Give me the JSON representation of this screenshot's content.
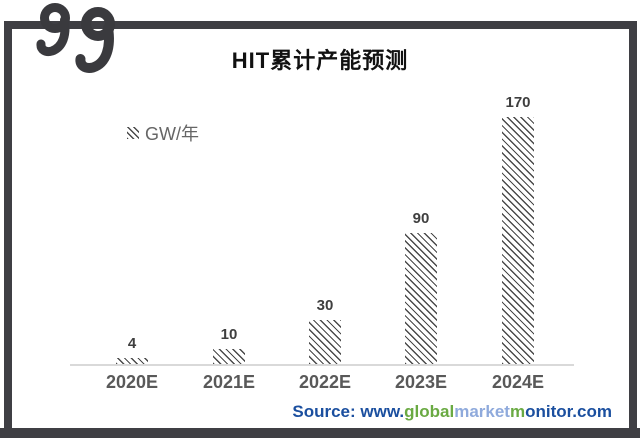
{
  "title": "HIT累计产能预测",
  "legend": {
    "label": "GW/年"
  },
  "chart_data": {
    "type": "bar",
    "title": "HIT累计产能预测",
    "unit": "GW/年",
    "categories": [
      "2020E",
      "2021E",
      "2022E",
      "2023E",
      "2024E"
    ],
    "values": [
      4,
      10,
      30,
      90,
      170
    ],
    "ylim": [
      0,
      180
    ],
    "bar_style": "diagonal-hatch",
    "grid": false,
    "y_axis_visible": false,
    "legend_position": "top-left",
    "data_labels": [
      "4",
      "10",
      "30",
      "90",
      "170"
    ]
  },
  "source": {
    "prefix": "Source: www.",
    "segments": [
      {
        "text": "global",
        "color": "#6aaa43"
      },
      {
        "text": "market",
        "color": "#8faadc"
      },
      {
        "text": "m",
        "color": "#6aaa43"
      },
      {
        "text": "onitor.com",
        "color": "#1b4f9f"
      }
    ]
  },
  "colors": {
    "frame": "#3f3f44",
    "logo": "#3a3a3e",
    "hatch": "#4a4a4a",
    "axis_line": "#d9d9d9",
    "title_text": "#111111",
    "legend_text": "#666666",
    "data_label": "#3f3f3f",
    "axis_label": "#595959",
    "source_blue": "#1b4f9f",
    "source_green": "#6aaa43",
    "source_lightblue": "#8faadc"
  }
}
